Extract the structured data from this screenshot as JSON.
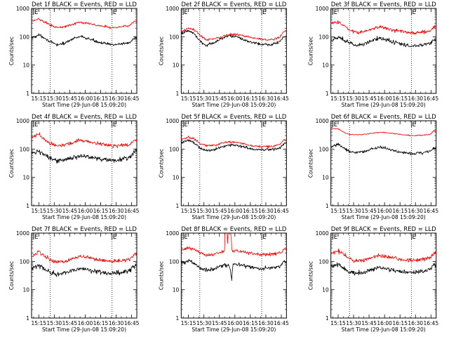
{
  "colors": {
    "events": "#000000",
    "lld": "#ff0000",
    "axes": "#000000",
    "background": "#ffffff"
  },
  "chart_data": [
    {
      "type": "line",
      "title": "Det 1f BLACK = Events, RED = LLD",
      "xlabel": "Start Time (29-Jun-08 15:09:20)",
      "ylabel": "Counts/sec",
      "xticks": [
        "15:15",
        "15:30",
        "15:45",
        "16:00",
        "16:15",
        "16:30",
        "16:45"
      ],
      "xtick_minutes": [
        15,
        30,
        45,
        60,
        75,
        90,
        105
      ],
      "xlim_minutes": [
        8,
        110
      ],
      "yticks": [
        "1",
        "10",
        "100",
        "1000"
      ],
      "ylim": [
        1,
        1000
      ],
      "yscale": "log",
      "flag_label": "E",
      "flag_minutes": [
        10,
        86
      ],
      "vlines_minutes": [
        26,
        86
      ],
      "x_minutes": [
        8,
        15,
        20,
        26,
        32,
        40,
        48,
        55,
        62,
        70,
        78,
        86,
        92,
        98,
        104,
        108
      ],
      "series": [
        {
          "name": "BLACK = Events",
          "color": "#000000",
          "noise": 0.05,
          "values": [
            90,
            115,
            95,
            65,
            52,
            58,
            85,
            100,
            88,
            70,
            58,
            52,
            55,
            58,
            65,
            90
          ]
        },
        {
          "name": "RED = LLD",
          "color": "#ff0000",
          "noise": 0.04,
          "values": [
            350,
            420,
            340,
            260,
            210,
            220,
            280,
            320,
            300,
            260,
            230,
            210,
            220,
            235,
            260,
            350
          ]
        }
      ]
    },
    {
      "type": "line",
      "title": "Det 2f BLACK = Events, RED = LLD",
      "xlabel": "Start Time (29-Jun-08 15:09:20)",
      "ylabel": "Counts/sec",
      "xticks": [
        "15:15",
        "15:30",
        "15:45",
        "16:00",
        "16:15",
        "16:30",
        "16:45"
      ],
      "xtick_minutes": [
        15,
        30,
        45,
        60,
        75,
        90,
        105
      ],
      "xlim_minutes": [
        8,
        110
      ],
      "yticks": [
        "1",
        "10",
        "100",
        "1000"
      ],
      "ylim": [
        1,
        1000
      ],
      "yscale": "log",
      "flag_label": "E",
      "flag_minutes": [
        10,
        86
      ],
      "vlines_minutes": [
        26,
        86
      ],
      "x_minutes": [
        8,
        15,
        20,
        26,
        32,
        40,
        48,
        55,
        62,
        70,
        78,
        86,
        92,
        98,
        104,
        108
      ],
      "series": [
        {
          "name": "BLACK = Events",
          "color": "#000000",
          "noise": 0.05,
          "values": [
            130,
            165,
            130,
            70,
            50,
            60,
            90,
            110,
            100,
            75,
            60,
            55,
            52,
            55,
            70,
            100
          ]
        },
        {
          "name": "RED = LLD",
          "color": "#ff0000",
          "noise": 0.04,
          "values": [
            150,
            200,
            180,
            110,
            80,
            85,
            100,
            120,
            125,
            105,
            90,
            80,
            78,
            82,
            100,
            160
          ]
        }
      ]
    },
    {
      "type": "line",
      "title": "Det 3f BLACK = Events, RED = LLD",
      "xlabel": "Start Time (29-Jun-08 15:09:20)",
      "ylabel": "Counts/sec",
      "xticks": [
        "15:15",
        "15:30",
        "15:45",
        "16:00",
        "16:15",
        "16:30",
        "16:45"
      ],
      "xtick_minutes": [
        15,
        30,
        45,
        60,
        75,
        90,
        105
      ],
      "xlim_minutes": [
        8,
        110
      ],
      "yticks": [
        "1",
        "10",
        "100",
        "1000"
      ],
      "ylim": [
        1,
        1000
      ],
      "yscale": "log",
      "flag_label": "E",
      "flag_minutes": [
        10,
        86
      ],
      "vlines_minutes": [
        26,
        86
      ],
      "x_minutes": [
        8,
        15,
        20,
        26,
        32,
        40,
        48,
        55,
        62,
        70,
        78,
        86,
        92,
        98,
        104,
        108
      ],
      "series": [
        {
          "name": "BLACK = Events",
          "color": "#000000",
          "noise": 0.07,
          "values": [
            75,
            95,
            80,
            60,
            50,
            55,
            75,
            90,
            80,
            62,
            52,
            48,
            50,
            52,
            58,
            75
          ]
        },
        {
          "name": "RED = LLD",
          "color": "#ff0000",
          "noise": 0.06,
          "values": [
            300,
            330,
            250,
            170,
            140,
            150,
            190,
            220,
            200,
            170,
            150,
            135,
            140,
            145,
            160,
            230
          ]
        }
      ]
    },
    {
      "type": "line",
      "title": "Det 4f BLACK = Events, RED = LLD",
      "xlabel": "Start Time (29-Jun-08 15:09:20)",
      "ylabel": "Counts/sec",
      "xticks": [
        "15:15",
        "15:30",
        "15:45",
        "16:00",
        "16:15",
        "16:30",
        "16:45"
      ],
      "xtick_minutes": [
        15,
        30,
        45,
        60,
        75,
        90,
        105
      ],
      "xlim_minutes": [
        8,
        110
      ],
      "yticks": [
        "1",
        "10",
        "100",
        "1000"
      ],
      "ylim": [
        1,
        1000
      ],
      "yscale": "log",
      "flag_label": "E",
      "flag_minutes": [
        10,
        86
      ],
      "vlines_minutes": [
        26,
        86
      ],
      "x_minutes": [
        8,
        15,
        20,
        26,
        32,
        40,
        48,
        55,
        62,
        70,
        78,
        86,
        92,
        98,
        104,
        108
      ],
      "series": [
        {
          "name": "BLACK = Events",
          "color": "#000000",
          "noise": 0.08,
          "values": [
            70,
            85,
            65,
            45,
            38,
            40,
            50,
            58,
            55,
            48,
            42,
            40,
            42,
            45,
            55,
            85
          ]
        },
        {
          "name": "RED = LLD",
          "color": "#ff0000",
          "noise": 0.07,
          "values": [
            260,
            320,
            230,
            160,
            130,
            140,
            170,
            200,
            190,
            160,
            140,
            130,
            135,
            140,
            150,
            210
          ]
        }
      ]
    },
    {
      "type": "line",
      "title": "Det 5f BLACK = Events, RED = LLD",
      "xlabel": "Start Time (29-Jun-08 15:09:20)",
      "ylabel": "Counts/sec",
      "xticks": [
        "15:15",
        "15:30",
        "15:45",
        "16:00",
        "16:15",
        "16:30",
        "16:45"
      ],
      "xtick_minutes": [
        15,
        30,
        45,
        60,
        75,
        90,
        105
      ],
      "xlim_minutes": [
        8,
        110
      ],
      "yticks": [
        "1",
        "10",
        "100",
        "1000"
      ],
      "ylim": [
        1,
        1000
      ],
      "yscale": "log",
      "flag_label": "E",
      "flag_minutes": [
        10,
        86
      ],
      "vlines_minutes": [
        26,
        86
      ],
      "x_minutes": [
        8,
        15,
        20,
        26,
        32,
        40,
        48,
        55,
        62,
        70,
        78,
        86,
        92,
        98,
        104,
        108
      ],
      "series": [
        {
          "name": "BLACK = Events",
          "color": "#000000",
          "noise": 0.05,
          "values": [
            160,
            210,
            170,
            110,
            90,
            95,
            120,
            140,
            135,
            115,
            100,
            92,
            95,
            100,
            110,
            160
          ]
        },
        {
          "name": "RED = LLD",
          "color": "#ff0000",
          "noise": 0.04,
          "values": [
            220,
            270,
            230,
            160,
            130,
            135,
            160,
            180,
            175,
            150,
            130,
            120,
            122,
            125,
            145,
            210
          ]
        }
      ]
    },
    {
      "type": "line",
      "title": "Det 6f BLACK = Events, RED = LLD",
      "xlabel": "Start Time (29-Jun-08 15:09:20)",
      "ylabel": "Counts/sec",
      "xticks": [
        "15:15",
        "15:30",
        "15:45",
        "16:00",
        "16:15",
        "16:30",
        "16:45"
      ],
      "xtick_minutes": [
        15,
        30,
        45,
        60,
        75,
        90,
        105
      ],
      "xlim_minutes": [
        8,
        110
      ],
      "yticks": [
        "1",
        "10",
        "100",
        "1000"
      ],
      "ylim": [
        1,
        1000
      ],
      "yscale": "log",
      "flag_label": "E",
      "flag_minutes": [
        10,
        86
      ],
      "vlines_minutes": [
        26,
        86
      ],
      "x_minutes": [
        8,
        15,
        20,
        26,
        32,
        40,
        48,
        55,
        62,
        70,
        78,
        86,
        92,
        98,
        104,
        108
      ],
      "series": [
        {
          "name": "BLACK = Events",
          "color": "#000000",
          "noise": 0.05,
          "values": [
            120,
            150,
            110,
            80,
            75,
            80,
            100,
            115,
            105,
            85,
            75,
            70,
            72,
            75,
            85,
            110
          ]
        },
        {
          "name": "RED = LLD",
          "color": "#ff0000",
          "noise": 0.02,
          "values": [
            550,
            520,
            400,
            330,
            320,
            330,
            360,
            390,
            380,
            350,
            320,
            300,
            300,
            310,
            330,
            450
          ]
        }
      ]
    },
    {
      "type": "line",
      "title": "Det 7f BLACK = Events, RED = LLD",
      "xlabel": "Start Time (29-Jun-08 15:09:20)",
      "ylabel": "Counts/sec",
      "xticks": [
        "15:15",
        "15:30",
        "15:45",
        "16:00",
        "16:15",
        "16:30",
        "16:45"
      ],
      "xtick_minutes": [
        15,
        30,
        45,
        60,
        75,
        90,
        105
      ],
      "xlim_minutes": [
        8,
        110
      ],
      "yticks": [
        "1",
        "10",
        "100",
        "1000"
      ],
      "ylim": [
        1,
        1000
      ],
      "yscale": "log",
      "flag_label": "E",
      "flag_minutes": [
        10,
        86
      ],
      "vlines_minutes": [
        26,
        86
      ],
      "x_minutes": [
        8,
        15,
        20,
        26,
        32,
        40,
        48,
        55,
        62,
        70,
        78,
        86,
        92,
        98,
        104,
        108
      ],
      "series": [
        {
          "name": "BLACK = Events",
          "color": "#000000",
          "noise": 0.08,
          "values": [
            60,
            75,
            55,
            40,
            35,
            38,
            48,
            55,
            52,
            45,
            40,
            38,
            40,
            42,
            50,
            70
          ]
        },
        {
          "name": "RED = LLD",
          "color": "#ff0000",
          "noise": 0.07,
          "values": [
            150,
            210,
            160,
            110,
            95,
            100,
            125,
            145,
            140,
            120,
            105,
            100,
            105,
            110,
            125,
            180
          ]
        }
      ]
    },
    {
      "type": "line",
      "title": "Det 8f BLACK = Events, RED = LLD",
      "xlabel": "Start Time (29-Jun-08 15:09:20)",
      "ylabel": "Counts/sec",
      "xticks": [
        "15:15",
        "15:30",
        "15:45",
        "16:00",
        "16:15",
        "16:30",
        "16:45"
      ],
      "xtick_minutes": [
        15,
        30,
        45,
        60,
        75,
        90,
        105
      ],
      "xlim_minutes": [
        8,
        110
      ],
      "yticks": [
        "1",
        "10",
        "100",
        "1000"
      ],
      "ylim": [
        1,
        1000
      ],
      "yscale": "log",
      "flag_label": "E",
      "flag_minutes": [
        10,
        86
      ],
      "vlines_minutes": [
        26,
        86
      ],
      "x_minutes": [
        8,
        15,
        20,
        26,
        32,
        40,
        48,
        50,
        51,
        52,
        53,
        54,
        55,
        57,
        58,
        62,
        70,
        78,
        86,
        92,
        98,
        104,
        108
      ],
      "series": [
        {
          "name": "BLACK = Events",
          "color": "#000000",
          "noise": 0.07,
          "values": [
            90,
            110,
            85,
            60,
            50,
            55,
            70,
            72,
            72,
            72,
            72,
            72,
            60,
            20,
            75,
            80,
            70,
            60,
            55,
            58,
            62,
            70,
            95
          ]
        },
        {
          "name": "RED = LLD",
          "color": "#ff0000",
          "noise": 0.06,
          "values": [
            250,
            310,
            270,
            200,
            170,
            180,
            220,
            230,
            2000,
            2000,
            250,
            2000,
            2000,
            240,
            240,
            245,
            210,
            185,
            170,
            175,
            185,
            200,
            260
          ]
        }
      ]
    },
    {
      "type": "line",
      "title": "Det 9f BLACK = Events, RED = LLD",
      "xlabel": "Start Time (29-Jun-08 15:09:20)",
      "ylabel": "Counts/sec",
      "xticks": [
        "15:15",
        "15:30",
        "15:45",
        "16:00",
        "16:15",
        "16:30",
        "16:45"
      ],
      "xtick_minutes": [
        15,
        30,
        45,
        60,
        75,
        90,
        105
      ],
      "xlim_minutes": [
        8,
        110
      ],
      "yticks": [
        "1",
        "10",
        "100",
        "1000"
      ],
      "ylim": [
        1,
        1000
      ],
      "yscale": "log",
      "flag_label": "E",
      "flag_minutes": [
        10,
        86
      ],
      "vlines_minutes": [
        26,
        86
      ],
      "x_minutes": [
        8,
        15,
        20,
        26,
        32,
        40,
        48,
        55,
        62,
        70,
        78,
        86,
        92,
        98,
        104,
        108
      ],
      "series": [
        {
          "name": "BLACK = Events",
          "color": "#000000",
          "noise": 0.08,
          "values": [
            65,
            80,
            60,
            42,
            38,
            40,
            52,
            60,
            55,
            48,
            42,
            40,
            42,
            45,
            52,
            75
          ]
        },
        {
          "name": "RED = LLD",
          "color": "#ff0000",
          "noise": 0.07,
          "values": [
            180,
            230,
            180,
            120,
            105,
            110,
            140,
            160,
            150,
            130,
            115,
            110,
            115,
            120,
            135,
            190
          ]
        }
      ]
    }
  ]
}
